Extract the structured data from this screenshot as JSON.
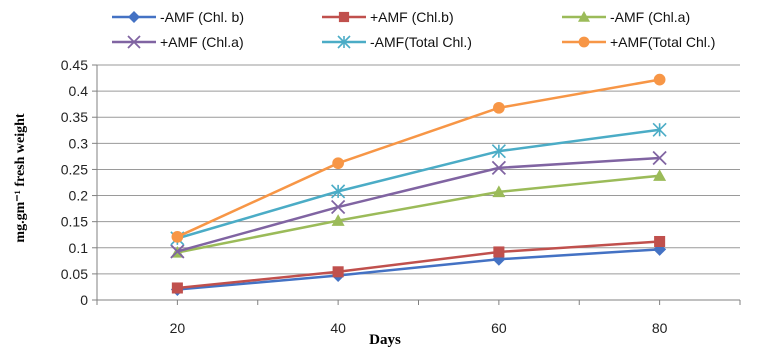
{
  "chart_data": {
    "type": "line",
    "xlabel": "Days",
    "ylabel": "mg.gm⁻¹ fresh weight",
    "x": [
      20,
      40,
      60,
      80
    ],
    "xlim": [
      10,
      90
    ],
    "xticks": [
      "20",
      "40",
      "60",
      "80"
    ],
    "ylim": [
      0,
      0.45
    ],
    "yticks": [
      "0",
      "0.05",
      "0.1",
      "0.15",
      "0.2",
      "0.25",
      "0.3",
      "0.35",
      "0.4",
      "0.45"
    ],
    "grid": "horizontal",
    "legend_position": "top",
    "series": [
      {
        "name": "-AMF (Chl. b)",
        "values": [
          0.02,
          0.047,
          0.078,
          0.097
        ],
        "color": "#4472C4",
        "marker": "diamond"
      },
      {
        "name": "+AMF (Chl.b)",
        "values": [
          0.023,
          0.054,
          0.092,
          0.112
        ],
        "color": "#C0504D",
        "marker": "square"
      },
      {
        "name": "-AMF (Chl.a)",
        "values": [
          0.091,
          0.152,
          0.207,
          0.238
        ],
        "color": "#9BBB59",
        "marker": "triangle"
      },
      {
        "name": "+AMF (Chl.a)",
        "values": [
          0.093,
          0.178,
          0.253,
          0.272
        ],
        "color": "#8064A2",
        "marker": "x"
      },
      {
        "name": "-AMF(Total Chl.)",
        "values": [
          0.118,
          0.208,
          0.285,
          0.326
        ],
        "color": "#4BACC6",
        "marker": "star"
      },
      {
        "name": "+AMF(Total Chl.)",
        "values": [
          0.121,
          0.262,
          0.368,
          0.422
        ],
        "color": "#F79646",
        "marker": "circle"
      }
    ]
  }
}
